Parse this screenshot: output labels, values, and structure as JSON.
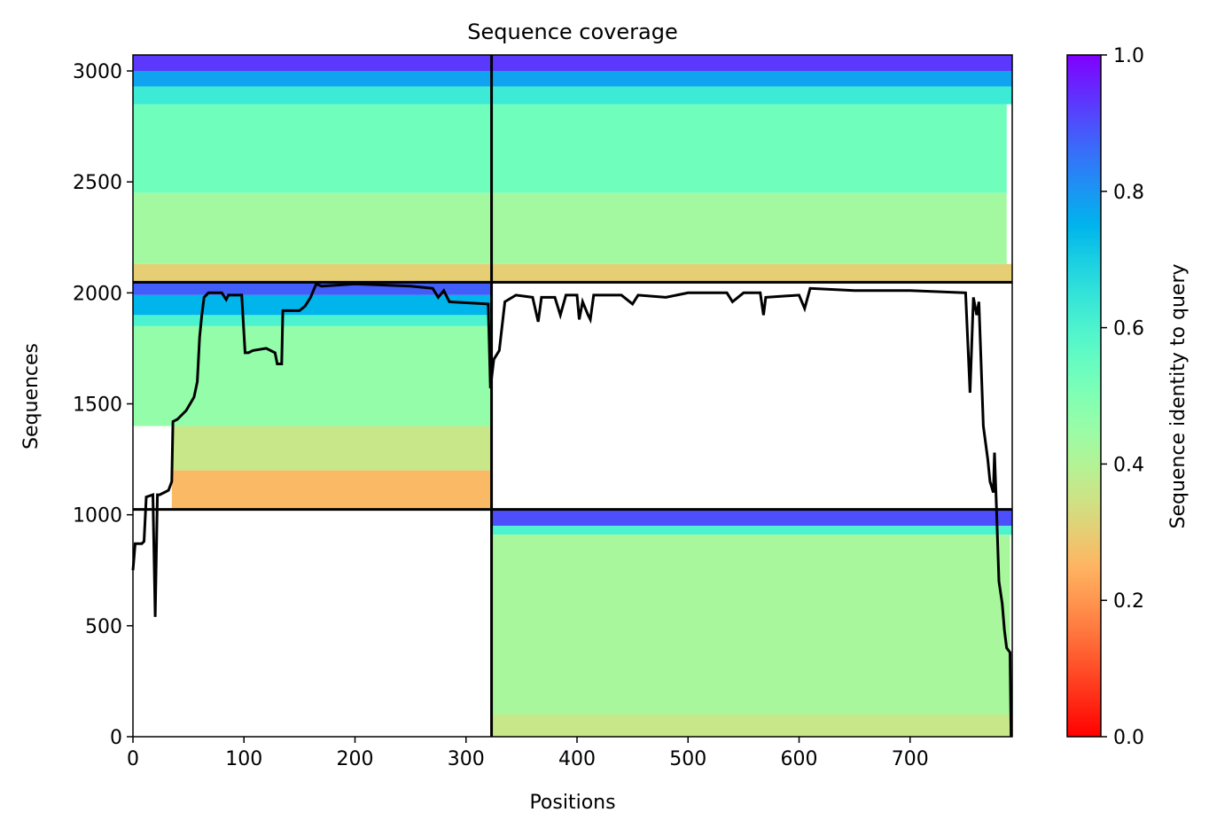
{
  "chart_data": {
    "type": "coverage",
    "title": "Sequence coverage",
    "xlabel": "Positions",
    "ylabel": "Sequences",
    "colorbar_label": "Sequence identity to query",
    "colormap": "rainbow_r",
    "xlim": [
      0,
      792
    ],
    "ylim": [
      0,
      3072
    ],
    "xticks": [
      0,
      100,
      200,
      300,
      400,
      500,
      600,
      700
    ],
    "yticks": [
      0,
      500,
      1000,
      1500,
      2000,
      2500,
      3000
    ],
    "clim": [
      0,
      1
    ],
    "cticks": [
      {
        "value": 0,
        "label": "0.0"
      },
      {
        "value": 0.2,
        "label": "0.2"
      },
      {
        "value": 0.4,
        "label": "0.4"
      },
      {
        "value": 0.6,
        "label": "0.6"
      },
      {
        "value": 0.8,
        "label": "0.8"
      },
      {
        "value": 1,
        "label": "1.0"
      }
    ],
    "boundaries": {
      "x": [
        323
      ],
      "y": [
        1024,
        2048
      ]
    },
    "blocks": [
      {
        "x": [
          0,
          323
        ],
        "y": [
          3000,
          3072
        ],
        "identity": 0.93
      },
      {
        "x": [
          0,
          323
        ],
        "y": [
          2930,
          3000
        ],
        "identity": 0.78
      },
      {
        "x": [
          0,
          323
        ],
        "y": [
          2850,
          2930
        ],
        "identity": 0.63
      },
      {
        "x": [
          0,
          323
        ],
        "y": [
          2450,
          2850
        ],
        "identity": 0.53
      },
      {
        "x": [
          0,
          323
        ],
        "y": [
          2130,
          2450
        ],
        "identity": 0.43
      },
      {
        "x": [
          0,
          323
        ],
        "y": [
          2048,
          2130
        ],
        "identity": 0.3
      },
      {
        "x": [
          323,
          792
        ],
        "y": [
          3000,
          3072
        ],
        "identity": 0.93
      },
      {
        "x": [
          323,
          792
        ],
        "y": [
          2930,
          3000
        ],
        "identity": 0.78
      },
      {
        "x": [
          323,
          792
        ],
        "y": [
          2850,
          2930
        ],
        "identity": 0.63
      },
      {
        "x": [
          323,
          787
        ],
        "y": [
          2450,
          2850
        ],
        "identity": 0.53
      },
      {
        "x": [
          323,
          787
        ],
        "y": [
          2130,
          2450
        ],
        "identity": 0.43
      },
      {
        "x": [
          323,
          792
        ],
        "y": [
          2048,
          2130
        ],
        "identity": 0.3
      },
      {
        "x": [
          0,
          323
        ],
        "y": [
          1990,
          2048
        ],
        "identity": 0.88
      },
      {
        "x": [
          0,
          323
        ],
        "y": [
          1900,
          1990
        ],
        "identity": 0.75
      },
      {
        "x": [
          0,
          323
        ],
        "y": [
          1850,
          1900
        ],
        "identity": 0.6
      },
      {
        "x": [
          0,
          323
        ],
        "y": [
          1400,
          1850
        ],
        "identity": 0.46
      },
      {
        "x": [
          35,
          323
        ],
        "y": [
          1200,
          1400
        ],
        "identity": 0.36
      },
      {
        "x": [
          35,
          323
        ],
        "y": [
          1024,
          1200
        ],
        "identity": 0.26
      },
      {
        "x": [
          323,
          792
        ],
        "y": [
          950,
          1024
        ],
        "identity": 0.9
      },
      {
        "x": [
          323,
          792
        ],
        "y": [
          910,
          950
        ],
        "identity": 0.6
      },
      {
        "x": [
          323,
          790
        ],
        "y": [
          100,
          910
        ],
        "identity": 0.42
      },
      {
        "x": [
          323,
          790
        ],
        "y": [
          0,
          100
        ],
        "identity": 0.36
      }
    ],
    "line": {
      "color": "#000000",
      "x": [
        0,
        2,
        8,
        10,
        12,
        18,
        20,
        22,
        24,
        28,
        32,
        35,
        36,
        40,
        48,
        55,
        58,
        60,
        62,
        64,
        68,
        80,
        84,
        86,
        98,
        101,
        104,
        108,
        120,
        128,
        130,
        134,
        135,
        150,
        155,
        160,
        165,
        170,
        200,
        250,
        270,
        275,
        280,
        285,
        320,
        322,
        325,
        330,
        335,
        345,
        360,
        365,
        368,
        380,
        385,
        390,
        400,
        402,
        405,
        410,
        412,
        415,
        440,
        450,
        455,
        480,
        500,
        535,
        540,
        550,
        565,
        568,
        570,
        600,
        605,
        610,
        650,
        700,
        750,
        754,
        757,
        760,
        762,
        766,
        770,
        772,
        775,
        776,
        778,
        780,
        783,
        785,
        787,
        790,
        791
      ],
      "values": [
        750,
        870,
        870,
        880,
        1080,
        1090,
        540,
        1090,
        1090,
        1100,
        1110,
        1150,
        1420,
        1430,
        1470,
        1530,
        1600,
        1800,
        1900,
        1980,
        2000,
        2000,
        1970,
        1990,
        1990,
        1730,
        1730,
        1740,
        1750,
        1730,
        1680,
        1680,
        1920,
        1920,
        1940,
        1980,
        2040,
        2030,
        2040,
        2030,
        2020,
        1980,
        2010,
        1960,
        1950,
        1570,
        1700,
        1740,
        1960,
        1990,
        1980,
        1870,
        1980,
        1980,
        1900,
        1990,
        1990,
        1880,
        1960,
        1900,
        1880,
        1990,
        1990,
        1950,
        1990,
        1980,
        2000,
        2000,
        1960,
        2000,
        2000,
        1900,
        1980,
        1990,
        1930,
        2020,
        2010,
        2010,
        2000,
        1550,
        1980,
        1900,
        1960,
        1400,
        1250,
        1150,
        1100,
        1280,
        1000,
        700,
        600,
        480,
        400,
        380,
        0
      ]
    }
  }
}
